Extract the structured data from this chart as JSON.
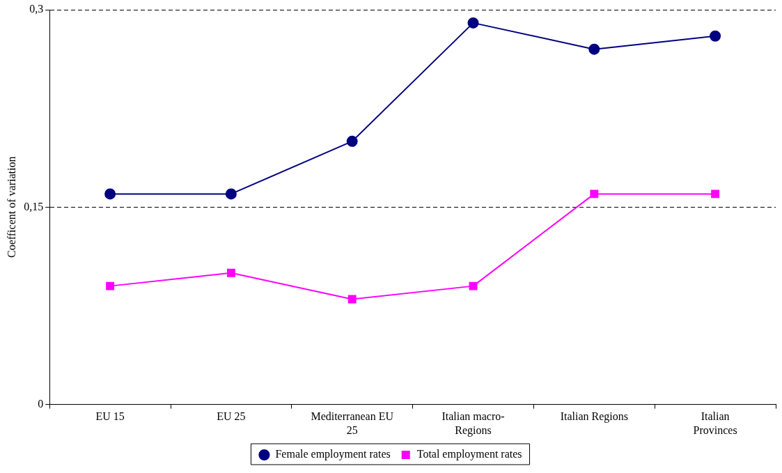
{
  "chart_data": {
    "type": "line",
    "ylabel": "Coefficent of variation",
    "categories": [
      "EU 15",
      "EU 25",
      "Mediterranean EU 25",
      "Italian macro-Regions",
      "Italian Regions",
      "Italian Provinces"
    ],
    "series": [
      {
        "name": "Female employment rates",
        "color": "#000080",
        "marker": "circle",
        "values": [
          0.16,
          0.16,
          0.2,
          0.29,
          0.27,
          0.28
        ]
      },
      {
        "name": "Total employment rates",
        "color": "#ff00ff",
        "marker": "square",
        "values": [
          0.09,
          0.1,
          0.08,
          0.09,
          0.16,
          0.16
        ]
      }
    ],
    "ylim": [
      0,
      0.3
    ],
    "yticks": [
      {
        "value": 0,
        "label": "0"
      },
      {
        "value": 0.15,
        "label": "0,15"
      },
      {
        "value": 0.3,
        "label": "0,3"
      }
    ],
    "grid": "y",
    "legend": "bottom",
    "line_style": "solid"
  }
}
